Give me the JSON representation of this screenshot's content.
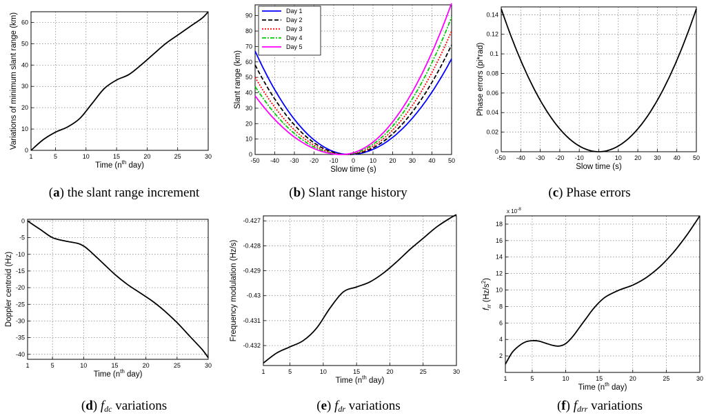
{
  "captions": [
    {
      "letter": "a",
      "text": "the slant range increment"
    },
    {
      "letter": "b",
      "text": "Slant range history"
    },
    {
      "letter": "c",
      "text": "Phase errors"
    },
    {
      "letter": "d",
      "base": "f",
      "sub": "dc",
      "text": "variations"
    },
    {
      "letter": "e",
      "base": "f",
      "sub": "dr",
      "text": "variations"
    },
    {
      "letter": "f",
      "base": "f",
      "sub": "drr",
      "text": "variations"
    }
  ],
  "chart_data": [
    {
      "id": "a",
      "type": "line",
      "ylabel": "Variations of minimum slant range (km)",
      "xlabel": {
        "pre": "Time (n",
        "sup": "th",
        "post": " day)"
      },
      "xlim": [
        1,
        30
      ],
      "ylim": [
        0,
        65
      ],
      "xticks": [
        1,
        5,
        10,
        15,
        20,
        25,
        30
      ],
      "yticks": [
        0,
        10,
        20,
        30,
        40,
        50,
        60
      ],
      "yticklabels": [
        "0",
        "10",
        "20",
        "30",
        "40",
        "50",
        "60"
      ],
      "series": [
        {
          "name": "increment",
          "color": "#000000",
          "x": [
            1,
            3,
            5,
            7,
            9,
            11,
            13,
            15,
            17,
            19,
            21,
            23,
            25,
            27,
            29,
            30
          ],
          "y": [
            0,
            5,
            8.5,
            11,
            15,
            22,
            29,
            33,
            35.5,
            40,
            45,
            50,
            54,
            58,
            62,
            65
          ]
        }
      ]
    },
    {
      "id": "b",
      "type": "line",
      "ylabel": "Slant range (km)",
      "xlabel": {
        "pre": "Slow time (s)"
      },
      "xlim": [
        -50,
        50
      ],
      "ylim": [
        0,
        97
      ],
      "xticks": [
        -50,
        -40,
        -30,
        -20,
        -10,
        0,
        10,
        20,
        30,
        40,
        50
      ],
      "yticks": [
        0,
        10,
        20,
        30,
        40,
        50,
        60,
        70,
        80,
        90
      ],
      "yticklabels": [
        "0",
        "10",
        "20",
        "30",
        "40",
        "50",
        "60",
        "70",
        "80",
        "90"
      ],
      "legend": {
        "position": "top-left"
      },
      "series": [
        {
          "name": "Day 1",
          "color": "#0000ff",
          "dash": "",
          "vertex": -2,
          "left": 67,
          "right": 62
        },
        {
          "name": "Day 2",
          "color": "#000000",
          "dash": "6 3",
          "vertex": -3,
          "left": 58,
          "right": 71
        },
        {
          "name": "Day 3",
          "color": "#ff0000",
          "dash": "2 2",
          "vertex": -4,
          "left": 50,
          "right": 80
        },
        {
          "name": "Day 4",
          "color": "#00cc00",
          "dash": "6 2 2 2",
          "vertex": -5,
          "left": 44,
          "right": 89
        },
        {
          "name": "Day 5",
          "color": "#ff00ff",
          "dash": "",
          "vertex": -6,
          "left": 38,
          "right": 98
        }
      ]
    },
    {
      "id": "c",
      "type": "line",
      "ylabel": "Phase errors (pi*rad)",
      "xlabel": {
        "pre": "Slow time (s)"
      },
      "xlim": [
        -50,
        50
      ],
      "ylim": [
        0,
        0.148
      ],
      "xticks": [
        -50,
        -40,
        -30,
        -20,
        -10,
        0,
        10,
        20,
        30,
        40,
        50
      ],
      "yticks": [
        0,
        0.02,
        0.04,
        0.06,
        0.08,
        0.1,
        0.12,
        0.14
      ],
      "yticklabels": [
        "0",
        "0.02",
        "0.04",
        "0.06",
        "0.08",
        "0.1",
        "0.12",
        "0.14"
      ],
      "series": [
        {
          "name": "phase",
          "color": "#000000",
          "quad": 0.146
        }
      ]
    },
    {
      "id": "d",
      "type": "line",
      "ylabel": "Doppler centroid (Hz)",
      "xlabel": {
        "pre": "Time (n",
        "sup": "th",
        "post": " day)"
      },
      "xlim": [
        1,
        30
      ],
      "ylim": [
        -41.5,
        0.5
      ],
      "xticks": [
        1,
        5,
        10,
        15,
        20,
        25,
        30
      ],
      "yticks": [
        0,
        -5,
        -10,
        -15,
        -20,
        -25,
        -30,
        -35,
        -40
      ],
      "yticklabels": [
        "0",
        "-5",
        "-10",
        "-15",
        "-20",
        "-25",
        "-30",
        "-35",
        "-40"
      ],
      "series": [
        {
          "name": "fdc",
          "color": "#000000",
          "x": [
            1,
            3,
            5,
            7,
            9,
            10,
            11,
            13,
            15,
            17,
            19,
            21,
            23,
            25,
            27,
            29,
            30
          ],
          "y": [
            0,
            -2.5,
            -5,
            -6,
            -6.7,
            -7.5,
            -9,
            -12.5,
            -16,
            -19,
            -21.5,
            -24,
            -27,
            -30.5,
            -34.5,
            -38.5,
            -41
          ]
        }
      ]
    },
    {
      "id": "e",
      "type": "line",
      "ylabel": "Frequency modulation (Hz/s)",
      "xlabel": {
        "pre": "Time (n",
        "sup": "th",
        "post": " day)"
      },
      "xlim": [
        1,
        30
      ],
      "ylim": [
        -0.4328,
        -0.4268
      ],
      "xticks": [
        1,
        5,
        10,
        15,
        20,
        25,
        30
      ],
      "yticks": [
        -0.432,
        -0.431,
        -0.43,
        -0.429,
        -0.428,
        -0.427
      ],
      "yticklabels": [
        "-0.432",
        "-0.431",
        "-0.43",
        "-0.429",
        "-0.428",
        "-0.427"
      ],
      "series": [
        {
          "name": "fdr",
          "color": "#000000",
          "x": [
            1,
            3,
            5,
            7,
            9,
            11,
            13,
            15,
            17,
            19,
            21,
            23,
            25,
            27,
            29,
            30
          ],
          "y": [
            -0.4327,
            -0.4323,
            -0.43205,
            -0.4318,
            -0.4313,
            -0.4305,
            -0.42985,
            -0.42965,
            -0.42945,
            -0.4291,
            -0.42865,
            -0.42815,
            -0.4277,
            -0.42725,
            -0.4269,
            -0.42675
          ]
        }
      ]
    },
    {
      "id": "f",
      "type": "line",
      "ylabel": {
        "base": "f",
        "sub": "rr",
        "post": " (Hz/s",
        "sup": "2",
        "end": ")"
      },
      "xlabel": {
        "pre": "Time (n",
        "sup": "th",
        "post": " day)"
      },
      "exponent": "x 10",
      "exponent_power": "-8",
      "xlim": [
        1,
        30
      ],
      "ylim": [
        0,
        19
      ],
      "xticks": [
        1,
        5,
        10,
        15,
        20,
        25,
        30
      ],
      "yticks": [
        2,
        4,
        6,
        8,
        10,
        12,
        14,
        16,
        18
      ],
      "yticklabels": [
        "2",
        "4",
        "6",
        "8",
        "10",
        "12",
        "14",
        "16",
        "18"
      ],
      "series": [
        {
          "name": "fdrr",
          "color": "#000000",
          "x": [
            1,
            2,
            3,
            4,
            5,
            6,
            7,
            8,
            9,
            10,
            11,
            12,
            13,
            14,
            15,
            16,
            18,
            20,
            22,
            24,
            26,
            28,
            30
          ],
          "y": [
            1,
            2.4,
            3.2,
            3.7,
            3.85,
            3.8,
            3.55,
            3.3,
            3.2,
            3.5,
            4.3,
            5.4,
            6.5,
            7.6,
            8.5,
            9.2,
            10,
            10.6,
            11.5,
            12.8,
            14.5,
            16.6,
            19
          ]
        }
      ]
    }
  ]
}
